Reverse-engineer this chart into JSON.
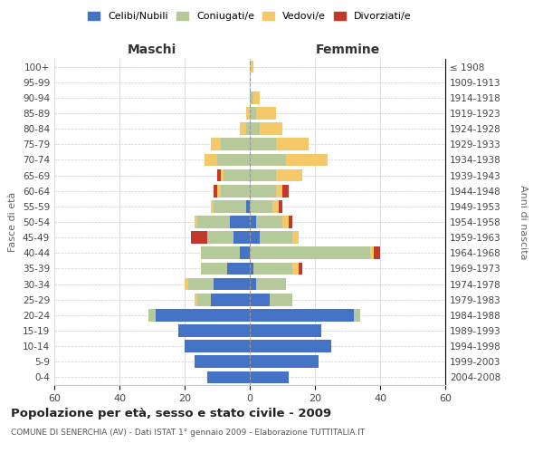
{
  "age_groups": [
    "0-4",
    "5-9",
    "10-14",
    "15-19",
    "20-24",
    "25-29",
    "30-34",
    "35-39",
    "40-44",
    "45-49",
    "50-54",
    "55-59",
    "60-64",
    "65-69",
    "70-74",
    "75-79",
    "80-84",
    "85-89",
    "90-94",
    "95-99",
    "100+"
  ],
  "birth_years": [
    "2004-2008",
    "1999-2003",
    "1994-1998",
    "1989-1993",
    "1984-1988",
    "1979-1983",
    "1974-1978",
    "1969-1973",
    "1964-1968",
    "1959-1963",
    "1954-1958",
    "1949-1953",
    "1944-1948",
    "1939-1943",
    "1934-1938",
    "1929-1933",
    "1924-1928",
    "1919-1923",
    "1914-1918",
    "1909-1913",
    "≤ 1908"
  ],
  "maschi": {
    "celibi": [
      13,
      17,
      20,
      22,
      29,
      12,
      11,
      7,
      3,
      5,
      6,
      1,
      0,
      0,
      0,
      0,
      0,
      0,
      0,
      0,
      0
    ],
    "coniugati": [
      0,
      0,
      0,
      0,
      2,
      4,
      8,
      8,
      12,
      8,
      10,
      10,
      9,
      8,
      10,
      9,
      1,
      0,
      0,
      0,
      0
    ],
    "vedovi": [
      0,
      0,
      0,
      0,
      0,
      1,
      1,
      0,
      0,
      0,
      1,
      1,
      1,
      1,
      4,
      3,
      2,
      1,
      0,
      0,
      0
    ],
    "divorziati": [
      0,
      0,
      0,
      0,
      0,
      0,
      0,
      0,
      0,
      5,
      0,
      0,
      1,
      1,
      0,
      0,
      0,
      0,
      0,
      0,
      0
    ]
  },
  "femmine": {
    "nubili": [
      12,
      21,
      25,
      22,
      32,
      6,
      2,
      1,
      0,
      3,
      2,
      0,
      0,
      0,
      0,
      0,
      0,
      0,
      0,
      0,
      0
    ],
    "coniugate": [
      0,
      0,
      0,
      0,
      2,
      7,
      9,
      12,
      37,
      10,
      8,
      7,
      8,
      8,
      11,
      8,
      3,
      2,
      1,
      0,
      0
    ],
    "vedove": [
      0,
      0,
      0,
      0,
      0,
      0,
      0,
      2,
      1,
      2,
      2,
      2,
      2,
      8,
      13,
      10,
      7,
      6,
      2,
      0,
      1
    ],
    "divorziate": [
      0,
      0,
      0,
      0,
      0,
      0,
      0,
      1,
      2,
      0,
      1,
      1,
      2,
      0,
      0,
      0,
      0,
      0,
      0,
      0,
      0
    ]
  },
  "color_celibi": "#4472c4",
  "color_coniugati": "#b5c99a",
  "color_vedovi": "#f5c96a",
  "color_divorziati": "#c0392b",
  "xlim": 60,
  "title": "Popolazione per età, sesso e stato civile - 2009",
  "subtitle": "COMUNE DI SENERCHIA (AV) - Dati ISTAT 1° gennaio 2009 - Elaborazione TUTTITALIA.IT",
  "ylabel_left": "Fasce di età",
  "ylabel_right": "Anni di nascita",
  "xlabel_maschi": "Maschi",
  "xlabel_femmine": "Femmine"
}
